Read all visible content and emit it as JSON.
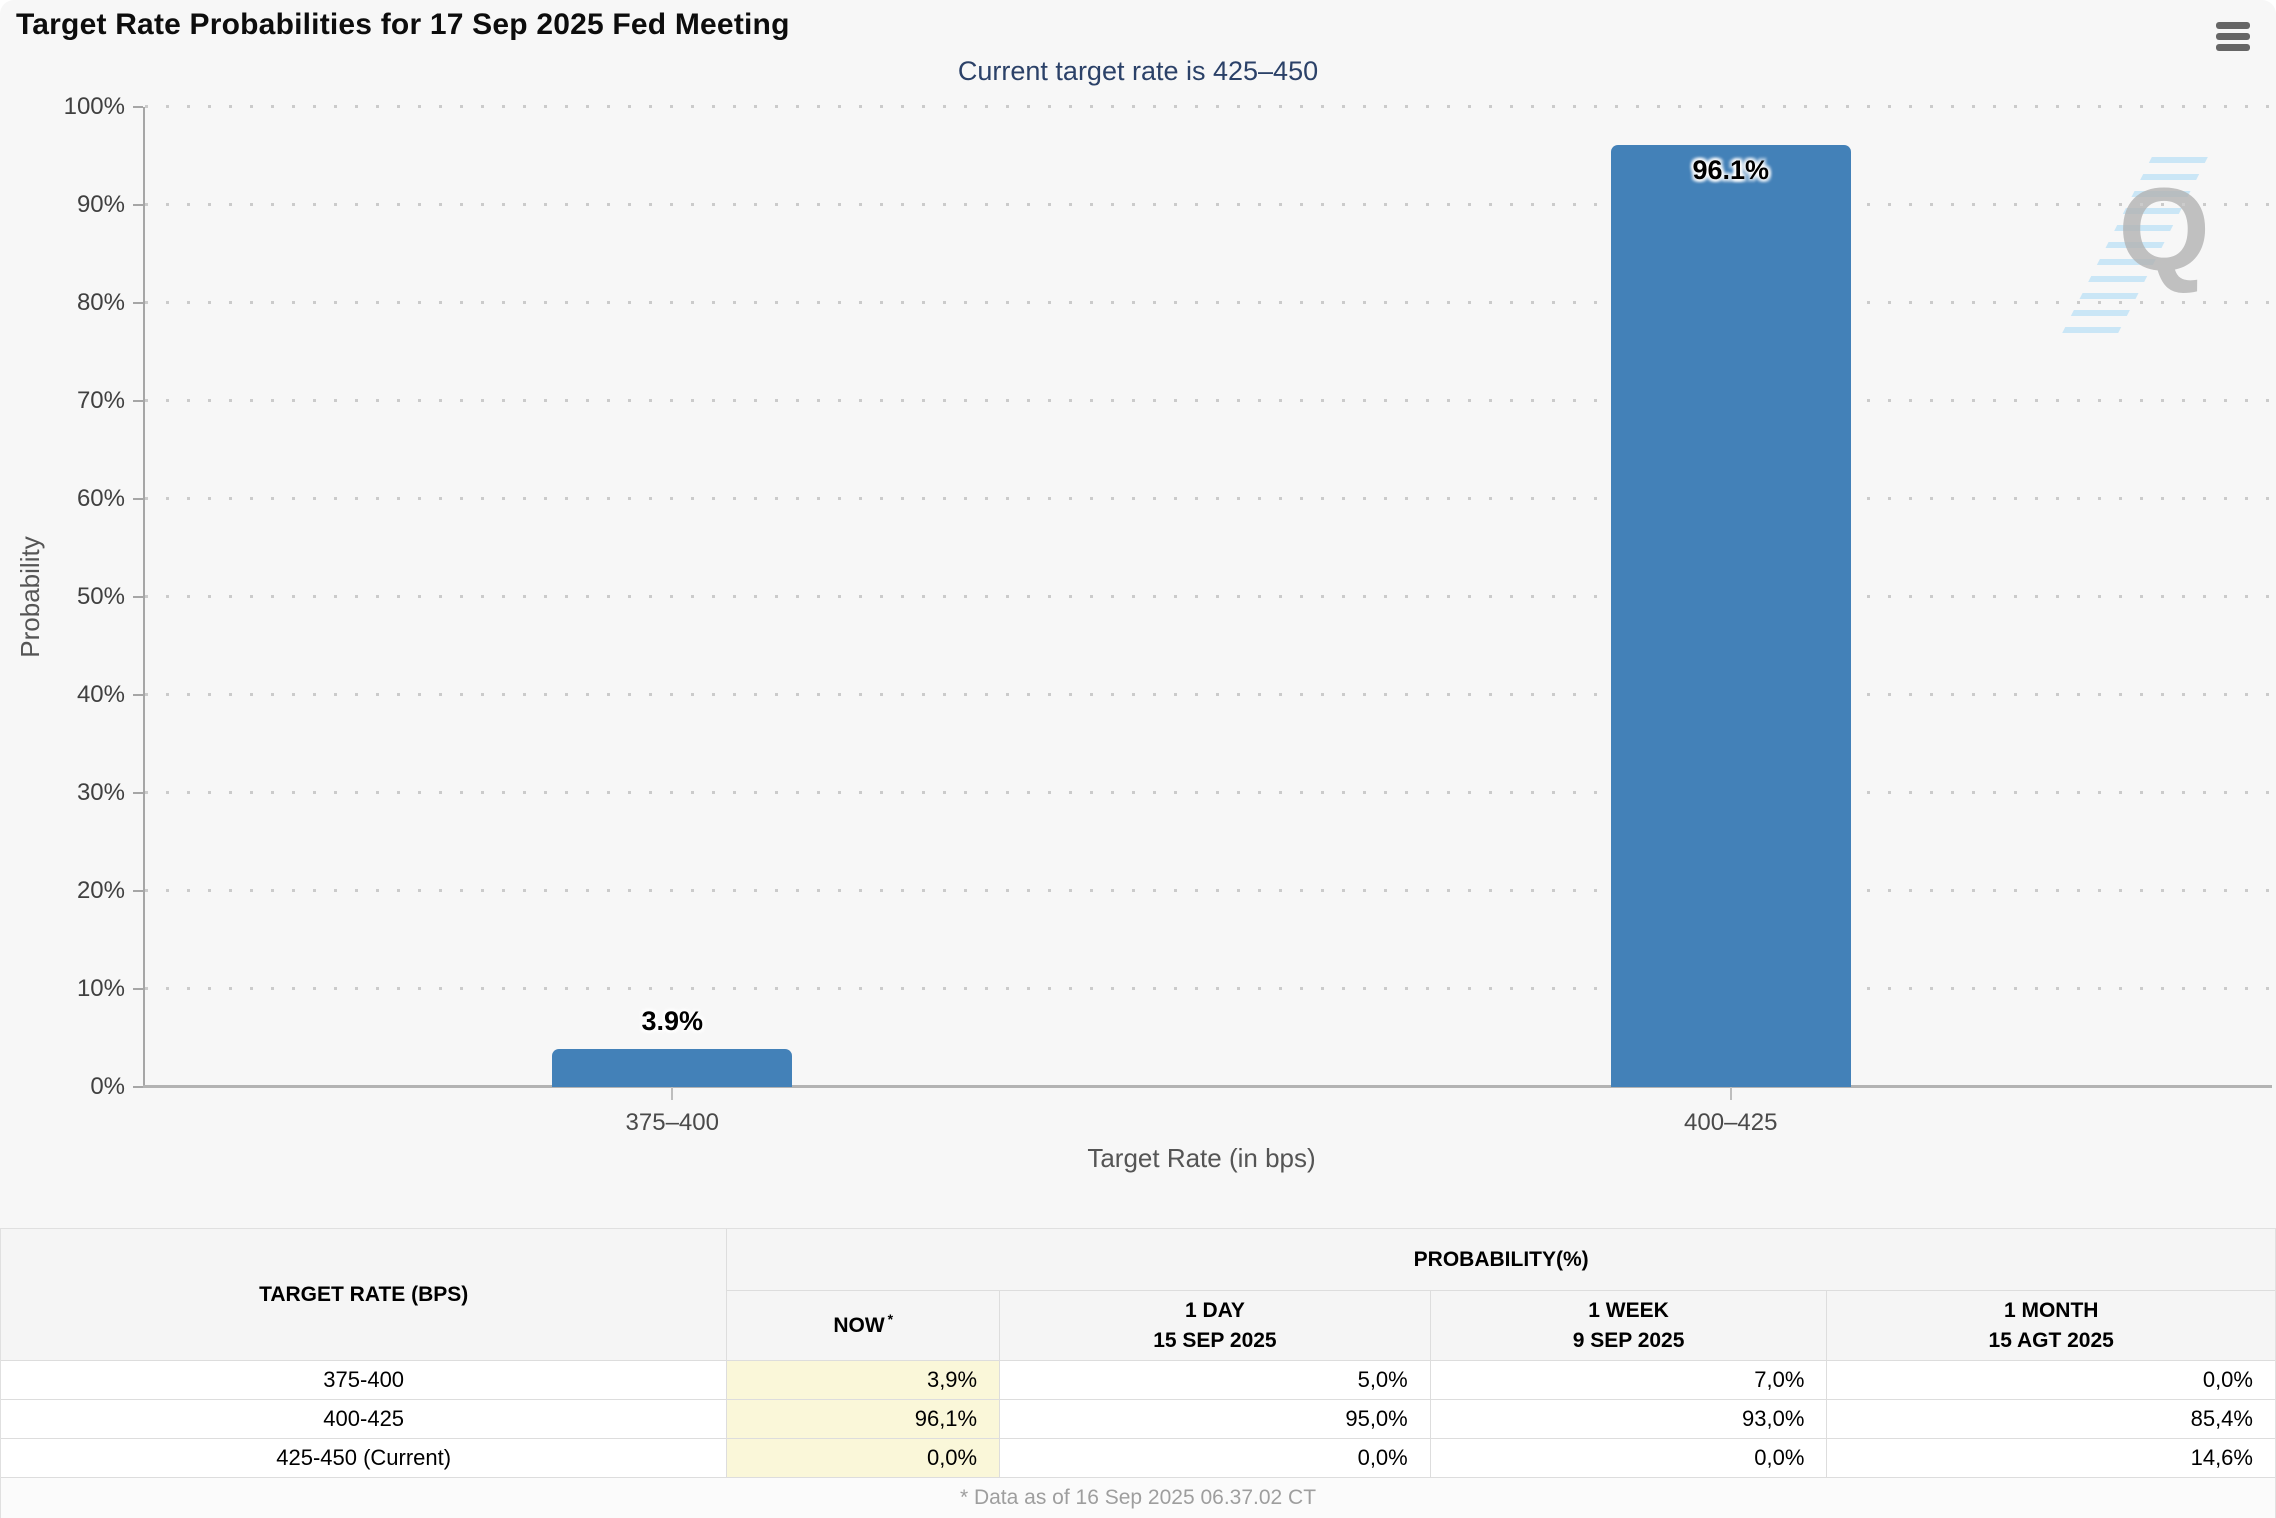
{
  "chart_data": {
    "type": "bar",
    "title": "Target Rate Probabilities for 17 Sep 2025 Fed Meeting",
    "subtitle": "Current target rate is 425–450",
    "xlabel": "Target Rate (in bps)",
    "ylabel": "Probability",
    "categories": [
      "375–400",
      "400–425"
    ],
    "values": [
      3.9,
      96.1
    ],
    "value_labels": [
      "3.9%",
      "96.1%"
    ],
    "ylim": [
      0,
      100
    ],
    "ytick_step": 10,
    "ytick_suffix": "%",
    "grid": "dotted-horizontal",
    "legend": "none",
    "bar_color": "#4381B8",
    "watermark_letter": "Q"
  },
  "colors": {
    "bar": "#4381B8",
    "subtitle_text": "#2B4168",
    "chart_background": "#F7F7F7",
    "now_column_highlight": "#FAF7D9"
  },
  "table": {
    "rate_header": "TARGET RATE (BPS)",
    "group_header": "PROBABILITY(%)",
    "columns": [
      {
        "label": "NOW",
        "sup": "*"
      },
      {
        "label": "1 DAY",
        "date": "15 SEP 2025"
      },
      {
        "label": "1 WEEK",
        "date": "9 SEP 2025"
      },
      {
        "label": "1 MONTH",
        "date": "15 AGT 2025"
      }
    ],
    "rows": [
      {
        "rate": "375-400",
        "now": "3,9%",
        "day": "5,0%",
        "week": "7,0%",
        "month": "0,0%"
      },
      {
        "rate": "400-425",
        "now": "96,1%",
        "day": "95,0%",
        "week": "93,0%",
        "month": "85,4%"
      },
      {
        "rate": "425-450 (Current)",
        "now": "0,0%",
        "day": "0,0%",
        "week": "0,0%",
        "month": "14,6%"
      }
    ],
    "footnote": "* Data as of 16 Sep 2025 06.37.02 CT"
  }
}
